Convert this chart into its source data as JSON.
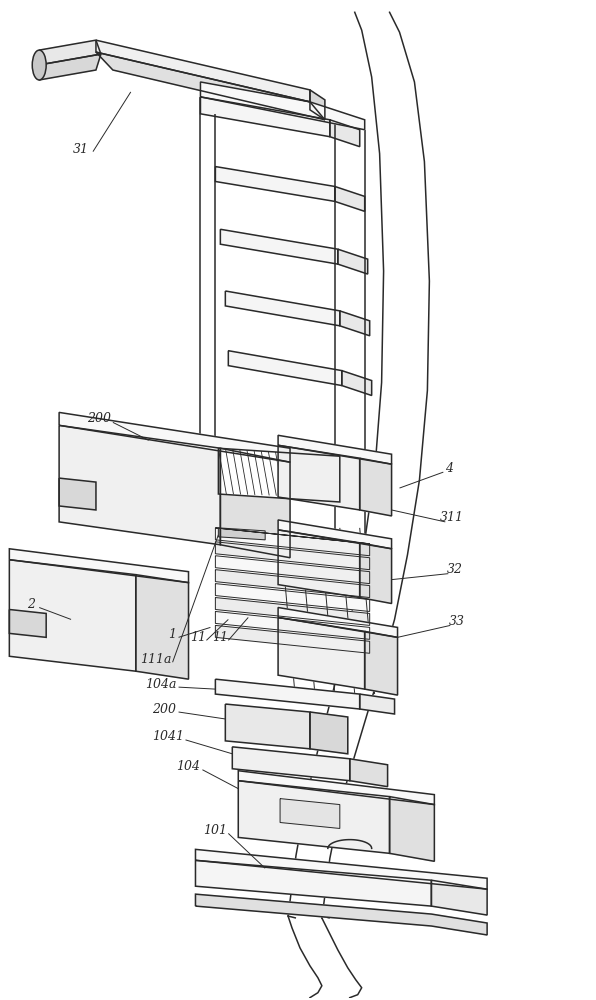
{
  "bg_color": "#ffffff",
  "lc": "#2a2a2a",
  "lw": 1.1,
  "tlw": 0.7,
  "flw": 0.5,
  "figsize": [
    5.96,
    10.0
  ],
  "dpi": 100,
  "label_fs": 9.0
}
